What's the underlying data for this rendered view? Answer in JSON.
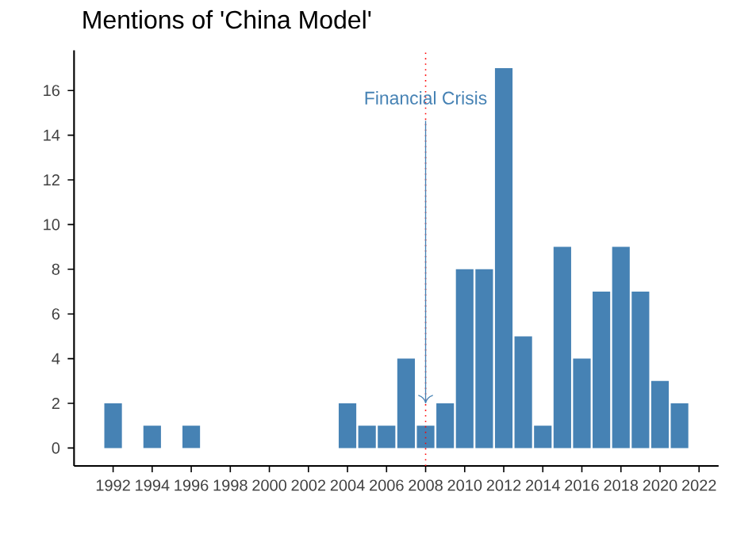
{
  "chart_data": {
    "type": "bar",
    "title": "Mentions of 'China Model'",
    "x": [
      1992,
      1994,
      1996,
      2004,
      2005,
      2006,
      2007,
      2008,
      2009,
      2010,
      2011,
      2012,
      2013,
      2014,
      2015,
      2016,
      2017,
      2018,
      2019,
      2020,
      2021
    ],
    "values": [
      2,
      1,
      1,
      2,
      1,
      1,
      4,
      1,
      2,
      8,
      8,
      17,
      5,
      1,
      9,
      4,
      7,
      9,
      7,
      3,
      2
    ],
    "color": "#4682b4",
    "xlim": [
      1990,
      2023
    ],
    "ylim": [
      -0.8,
      17.8
    ],
    "xticks": [
      1992,
      1994,
      1996,
      1998,
      2000,
      2002,
      2004,
      2006,
      2008,
      2010,
      2012,
      2014,
      2016,
      2018,
      2020,
      2022
    ],
    "yticks": [
      0,
      2,
      4,
      6,
      8,
      10,
      12,
      14,
      16
    ],
    "ref_lines": [
      {
        "axis": "x",
        "value": 2008,
        "color": "#ff0000",
        "line_style": "dotted"
      }
    ],
    "annotations": [
      {
        "text": "Financial Crisis",
        "x": 2008,
        "y": 2
      }
    ]
  }
}
